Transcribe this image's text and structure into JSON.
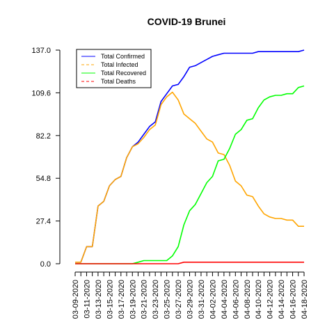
{
  "chart_data": {
    "type": "line",
    "title": "COVID-19 Brunei",
    "xlabel": "",
    "ylabel": "",
    "ylim": [
      0,
      137.0
    ],
    "y_ticks": [
      "0.0",
      "27.4",
      "54.8",
      "82.2",
      "109.6",
      "137.0"
    ],
    "y_tick_values": [
      0,
      27.4,
      54.8,
      82.2,
      109.6,
      137.0
    ],
    "x_tick_labels": [
      "03-09-2020",
      "03-11-2020",
      "03-13-2020",
      "03-15-2020",
      "03-17-2020",
      "03-19-2020",
      "03-21-2020",
      "03-23-2020",
      "03-25-2020",
      "03-27-2020",
      "03-29-2020",
      "03-31-2020",
      "04-02-2020",
      "04-04-2020",
      "04-06-2020",
      "04-08-2020",
      "04-10-2020",
      "04-12-2020",
      "04-14-2020",
      "04-16-2020",
      "04-18-2020"
    ],
    "x": [
      "03-09-2020",
      "03-10-2020",
      "03-11-2020",
      "03-12-2020",
      "03-13-2020",
      "03-14-2020",
      "03-15-2020",
      "03-16-2020",
      "03-17-2020",
      "03-18-2020",
      "03-19-2020",
      "03-20-2020",
      "03-21-2020",
      "03-22-2020",
      "03-23-2020",
      "03-24-2020",
      "03-25-2020",
      "03-26-2020",
      "03-27-2020",
      "03-28-2020",
      "03-29-2020",
      "03-30-2020",
      "03-31-2020",
      "04-01-2020",
      "04-02-2020",
      "04-03-2020",
      "04-04-2020",
      "04-05-2020",
      "04-06-2020",
      "04-07-2020",
      "04-08-2020",
      "04-09-2020",
      "04-10-2020",
      "04-11-2020",
      "04-12-2020",
      "04-13-2020",
      "04-14-2020",
      "04-15-2020",
      "04-16-2020",
      "04-17-2020",
      "04-18-2020"
    ],
    "legend_position": "top-left",
    "grid": false,
    "series": [
      {
        "name": "Total Confirmed",
        "color": "#0000ff",
        "dash": "solid",
        "values": [
          1,
          1,
          11,
          11,
          37,
          40,
          50,
          54,
          56,
          68,
          75,
          78,
          83,
          88,
          91,
          104,
          109,
          114,
          115,
          120,
          126,
          127,
          129,
          131,
          133,
          134,
          135,
          135,
          135,
          135,
          135,
          135,
          136,
          136,
          136,
          136,
          136,
          136,
          136,
          136,
          137
        ]
      },
      {
        "name": "Total Infected",
        "color": "#ffa500",
        "dash": "dashed",
        "values": [
          1,
          1,
          11,
          11,
          37,
          40,
          50,
          54,
          56,
          68,
          75,
          77,
          81,
          86,
          89,
          102,
          107,
          110,
          105,
          96,
          93,
          90,
          85,
          80,
          78,
          71,
          70,
          63,
          53,
          50,
          44,
          43,
          37,
          32,
          30,
          29,
          29,
          28,
          28,
          24,
          24
        ]
      },
      {
        "name": "Total Recovered",
        "color": "#00ff00",
        "dash": "solid",
        "values": [
          0,
          0,
          0,
          0,
          0,
          0,
          0,
          0,
          0,
          0,
          0,
          1,
          2,
          2,
          2,
          2,
          2,
          5,
          11,
          25,
          34,
          38,
          45,
          52,
          56,
          66,
          67,
          74,
          83,
          86,
          92,
          93,
          100,
          105,
          107,
          108,
          108,
          109,
          109,
          113,
          114
        ]
      },
      {
        "name": "Total Deaths",
        "color": "#ff0000",
        "dash": "dashed",
        "values": [
          0,
          0,
          0,
          0,
          0,
          0,
          0,
          0,
          0,
          0,
          0,
          0,
          0,
          0,
          0,
          0,
          0,
          0,
          0,
          1,
          1,
          1,
          1,
          1,
          1,
          1,
          1,
          1,
          1,
          1,
          1,
          1,
          1,
          1,
          1,
          1,
          1,
          1,
          1,
          1,
          1
        ]
      }
    ]
  }
}
